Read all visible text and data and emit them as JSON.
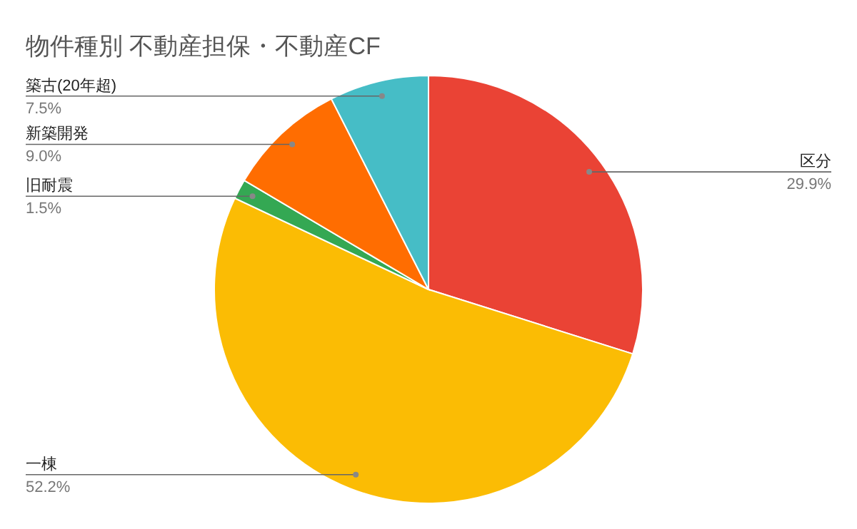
{
  "chart_data": {
    "type": "pie",
    "title": "物件種別 不動産担保・不動産CF",
    "categories": [
      "区分",
      "一棟",
      "旧耐震",
      "新築開発",
      "築古(20年超)"
    ],
    "values": [
      29.9,
      52.2,
      1.5,
      9.0,
      7.5
    ],
    "colors": [
      "#ea4335",
      "#fbbc04",
      "#34a853",
      "#ff6d01",
      "#46bdc6"
    ],
    "value_labels": [
      "29.9%",
      "52.2%",
      "1.5%",
      "9.0%",
      "7.5%"
    ],
    "legend": false
  }
}
